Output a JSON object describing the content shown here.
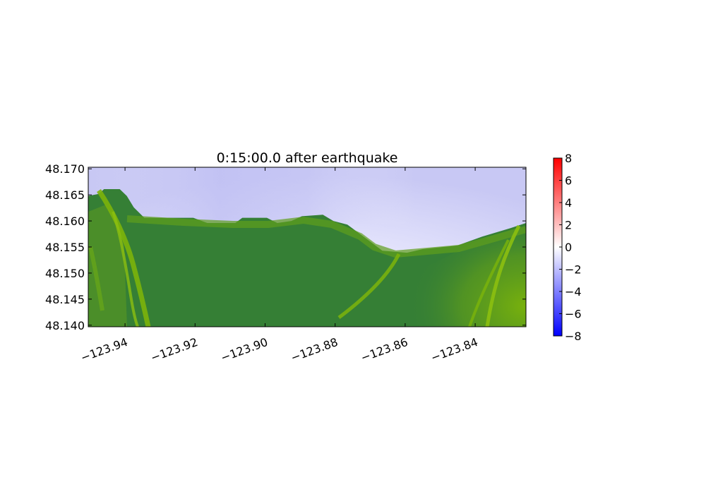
{
  "chart_data": {
    "type": "heatmap",
    "title": "0:15:00.0 after earthquake",
    "xlabel": "",
    "ylabel": "",
    "xlim": [
      -123.9505,
      -123.8255
    ],
    "ylim": [
      48.1397,
      48.1703
    ],
    "x_ticks": [
      {
        "value": -123.94,
        "label": "−123.94"
      },
      {
        "value": -123.92,
        "label": "−123.92"
      },
      {
        "value": -123.9,
        "label": "−123.90"
      },
      {
        "value": -123.88,
        "label": "−123.88"
      },
      {
        "value": -123.86,
        "label": "−123.86"
      },
      {
        "value": -123.84,
        "label": "−123.84"
      }
    ],
    "y_ticks": [
      {
        "value": 48.17,
        "label": "48.170"
      },
      {
        "value": 48.165,
        "label": "48.165"
      },
      {
        "value": 48.16,
        "label": "48.160"
      },
      {
        "value": 48.155,
        "label": "48.155"
      },
      {
        "value": 48.15,
        "label": "48.150"
      },
      {
        "value": 48.145,
        "label": "48.145"
      },
      {
        "value": 48.14,
        "label": "48.140"
      }
    ],
    "colorbar": {
      "range": [
        -8,
        8
      ],
      "ticks": [
        {
          "value": 8,
          "label": "8"
        },
        {
          "value": 6,
          "label": "6"
        },
        {
          "value": 4,
          "label": "4"
        },
        {
          "value": 2,
          "label": "2"
        },
        {
          "value": 0,
          "label": "0"
        },
        {
          "value": -2,
          "label": "−2"
        },
        {
          "value": -4,
          "label": "−4"
        },
        {
          "value": -6,
          "label": "−6"
        },
        {
          "value": -8,
          "label": "−8"
        }
      ],
      "colors": {
        "min": "#0000ff",
        "mid": "#ffffff",
        "max": "#ff0000"
      }
    },
    "water_surface_estimate": [
      {
        "x": -123.945,
        "y": 48.168,
        "value": -1.5
      },
      {
        "x": -123.905,
        "y": 48.167,
        "value": -2.3
      },
      {
        "x": -123.885,
        "y": 48.166,
        "value": -2.2
      },
      {
        "x": -123.855,
        "y": 48.158,
        "value": -0.4
      },
      {
        "x": -123.835,
        "y": 48.167,
        "value": -1.4
      }
    ],
    "shoreline": [
      [
        -123.9505,
        48.1648
      ],
      [
        -123.9475,
        48.1652
      ],
      [
        -123.946,
        48.1661
      ],
      [
        -123.9415,
        48.1661
      ],
      [
        -123.9395,
        48.1648
      ],
      [
        -123.9375,
        48.1626
      ],
      [
        -123.9345,
        48.1606
      ],
      [
        -123.9205,
        48.1606
      ],
      [
        -123.9165,
        48.1596
      ],
      [
        -123.9085,
        48.1596
      ],
      [
        -123.9065,
        48.1606
      ],
      [
        -123.8995,
        48.1606
      ],
      [
        -123.8965,
        48.1596
      ],
      [
        -123.8925,
        48.16
      ],
      [
        -123.8895,
        48.1609
      ],
      [
        -123.8835,
        48.1612
      ],
      [
        -123.8805,
        48.16
      ],
      [
        -123.8765,
        48.1593
      ],
      [
        -123.8705,
        48.1563
      ],
      [
        -123.8665,
        48.1543
      ],
      [
        -123.8595,
        48.1539
      ],
      [
        -123.855,
        48.1546
      ],
      [
        -123.845,
        48.1553
      ],
      [
        -123.838,
        48.157
      ],
      [
        -123.83,
        48.1586
      ],
      [
        -123.8255,
        48.1596
      ]
    ],
    "land_colors": {
      "lowland": "#357f35",
      "highland": "#7cb40a"
    },
    "grid": false,
    "legend": "none"
  }
}
